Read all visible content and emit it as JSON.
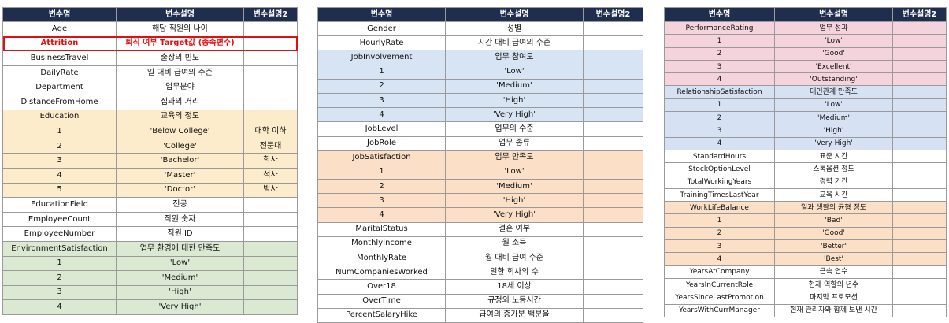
{
  "colors": {
    "header_bg": "#1f2d4e",
    "header_text": "#ffffff",
    "edu": "#fdeccb",
    "env": "#dbe9d3",
    "job": "#d7e4f3",
    "sat": "#fbdfc6",
    "perf": "#f4d3dc",
    "rel": "#d7e1f4",
    "wlb": "#fbdfc6",
    "highlight": "#e01010"
  },
  "tables": [
    {
      "headers": [
        "변수명",
        "변수설명",
        "변수설명2"
      ],
      "rows": [
        {
          "c": [
            "Age",
            "해당 직원의 나이",
            ""
          ]
        },
        {
          "c": [
            "Attrition",
            "퇴직 여부 Target값 (종속변수)",
            ""
          ],
          "highlight": true
        },
        {
          "c": [
            "BusinessTravel",
            "출장의 빈도",
            ""
          ]
        },
        {
          "c": [
            "DailyRate",
            "일 대비 급여의 수준",
            ""
          ]
        },
        {
          "c": [
            "Department",
            "업무분야",
            ""
          ]
        },
        {
          "c": [
            "DistanceFromHome",
            "집과의 거리",
            ""
          ]
        },
        {
          "c": [
            "Education",
            "교육의 정도",
            ""
          ],
          "group": "edu"
        },
        {
          "c": [
            "1",
            "'Below College'",
            "대학 이하"
          ],
          "group": "edu"
        },
        {
          "c": [
            "2",
            "'College'",
            "전문대"
          ],
          "group": "edu"
        },
        {
          "c": [
            "3",
            "'Bachelor'",
            "학사"
          ],
          "group": "edu"
        },
        {
          "c": [
            "4",
            "'Master'",
            "석사"
          ],
          "group": "edu"
        },
        {
          "c": [
            "5",
            "'Doctor'",
            "박사"
          ],
          "group": "edu"
        },
        {
          "c": [
            "EducationField",
            "전공",
            ""
          ]
        },
        {
          "c": [
            "EmployeeCount",
            "직원 숫자",
            ""
          ]
        },
        {
          "c": [
            "EmployeeNumber",
            "직원 ID",
            ""
          ]
        },
        {
          "c": [
            "EnvironmentSatisfaction",
            "업무 환경에 대한 만족도",
            ""
          ],
          "group": "env"
        },
        {
          "c": [
            "1",
            "'Low'",
            ""
          ],
          "group": "env"
        },
        {
          "c": [
            "2",
            "'Medium'",
            ""
          ],
          "group": "env"
        },
        {
          "c": [
            "3",
            "'High'",
            ""
          ],
          "group": "env"
        },
        {
          "c": [
            "4",
            "'Very High'",
            ""
          ],
          "group": "env"
        }
      ]
    },
    {
      "headers": [
        "변수명",
        "변수설명",
        "변수설명2"
      ],
      "rows": [
        {
          "c": [
            "Gender",
            "성별",
            ""
          ]
        },
        {
          "c": [
            "HourlyRate",
            "시간 대비 급여의 수준",
            ""
          ]
        },
        {
          "c": [
            "JobInvolvement",
            "업무 참여도",
            ""
          ],
          "group": "job"
        },
        {
          "c": [
            "1",
            "'Low'",
            ""
          ],
          "group": "job"
        },
        {
          "c": [
            "2",
            "'Medium'",
            ""
          ],
          "group": "job"
        },
        {
          "c": [
            "3",
            "'High'",
            ""
          ],
          "group": "job"
        },
        {
          "c": [
            "4",
            "'Very High'",
            ""
          ],
          "group": "job"
        },
        {
          "c": [
            "JobLevel",
            "업무의 수준",
            ""
          ]
        },
        {
          "c": [
            "JobRole",
            "업무 종류",
            ""
          ]
        },
        {
          "c": [
            "JobSatisfaction",
            "업무 만족도",
            ""
          ],
          "group": "sat"
        },
        {
          "c": [
            "1",
            "'Low'",
            ""
          ],
          "group": "sat"
        },
        {
          "c": [
            "2",
            "'Medium'",
            ""
          ],
          "group": "sat"
        },
        {
          "c": [
            "3",
            "'High'",
            ""
          ],
          "group": "sat"
        },
        {
          "c": [
            "4",
            "'Very High'",
            ""
          ],
          "group": "sat"
        },
        {
          "c": [
            "MaritalStatus",
            "결혼 여부",
            ""
          ]
        },
        {
          "c": [
            "MonthlyIncome",
            "월 소득",
            ""
          ]
        },
        {
          "c": [
            "MonthlyRate",
            "월 대비 급여 수준",
            ""
          ]
        },
        {
          "c": [
            "NumCompaniesWorked",
            "일한 회사의 수",
            ""
          ]
        },
        {
          "c": [
            "Over18",
            "18세 이상",
            ""
          ]
        },
        {
          "c": [
            "OverTime",
            "규정외 노동시간",
            ""
          ]
        },
        {
          "c": [
            "PercentSalaryHike",
            "급여의 증가분 백분율",
            ""
          ]
        }
      ]
    },
    {
      "headers": [
        "변수명",
        "변수설명",
        "변수설명2"
      ],
      "rows": [
        {
          "c": [
            "PerformanceRating",
            "업무 성과",
            ""
          ],
          "group": "perf"
        },
        {
          "c": [
            "1",
            "'Low'",
            ""
          ],
          "group": "perf"
        },
        {
          "c": [
            "2",
            "'Good'",
            ""
          ],
          "group": "perf"
        },
        {
          "c": [
            "3",
            "'Excellent'",
            ""
          ],
          "group": "perf"
        },
        {
          "c": [
            "4",
            "'Outstanding'",
            ""
          ],
          "group": "perf"
        },
        {
          "c": [
            "RelationshipSatisfaction",
            "대인관계 만족도",
            ""
          ],
          "group": "rel"
        },
        {
          "c": [
            "1",
            "'Low'",
            ""
          ],
          "group": "rel"
        },
        {
          "c": [
            "2",
            "'Medium'",
            ""
          ],
          "group": "rel"
        },
        {
          "c": [
            "3",
            "'High'",
            ""
          ],
          "group": "rel"
        },
        {
          "c": [
            "4",
            "'Very High'",
            ""
          ],
          "group": "rel"
        },
        {
          "c": [
            "StandardHours",
            "표준 시간",
            ""
          ]
        },
        {
          "c": [
            "StockOptionLevel",
            "스톡옵션 정도",
            ""
          ]
        },
        {
          "c": [
            "TotalWorkingYears",
            "경력 기간",
            ""
          ]
        },
        {
          "c": [
            "TrainingTimesLastYear",
            "교육 시간",
            ""
          ]
        },
        {
          "c": [
            "WorkLifeBalance",
            "일과 생활의 균형 정도",
            ""
          ],
          "group": "wlb"
        },
        {
          "c": [
            "1",
            "'Bad'",
            ""
          ],
          "group": "wlb"
        },
        {
          "c": [
            "2",
            "'Good'",
            ""
          ],
          "group": "wlb"
        },
        {
          "c": [
            "3",
            "'Better'",
            ""
          ],
          "group": "wlb"
        },
        {
          "c": [
            "4",
            "'Best'",
            ""
          ],
          "group": "wlb"
        },
        {
          "c": [
            "YearsAtCompany",
            "근속 연수",
            ""
          ]
        },
        {
          "c": [
            "YearsInCurrentRole",
            "현재 역할의 년수",
            ""
          ]
        },
        {
          "c": [
            "YearsSinceLastPromotion",
            "마지막 프로모션",
            ""
          ]
        },
        {
          "c": [
            "YearsWithCurrManager",
            "현재 관리자와 함께 보낸 시간",
            ""
          ]
        }
      ]
    }
  ]
}
